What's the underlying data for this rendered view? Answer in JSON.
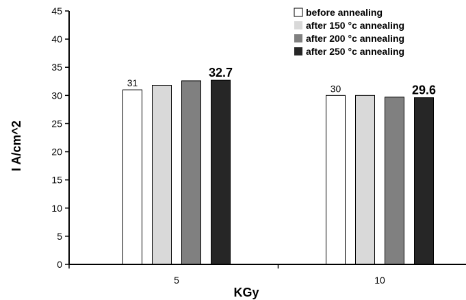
{
  "chart_data": {
    "type": "bar",
    "categories": [
      "5",
      "10"
    ],
    "series": [
      {
        "name": "before annealing",
        "values": [
          31,
          30
        ],
        "color": "#ffffff"
      },
      {
        "name": "after 150 °c annealing",
        "values": [
          31.8,
          30
        ],
        "color": "#d9d9d9"
      },
      {
        "name": "after 200 °c annealing",
        "values": [
          32.6,
          29.7
        ],
        "color": "#808080"
      },
      {
        "name": "after 250 °c annealing",
        "values": [
          32.7,
          29.6
        ],
        "color": "#262626"
      }
    ],
    "data_labels": [
      {
        "category": 0,
        "series": 0,
        "text": "31",
        "bold": false
      },
      {
        "category": 0,
        "series": 3,
        "text": "32.7",
        "bold": true
      },
      {
        "category": 1,
        "series": 0,
        "text": "30",
        "bold": false
      },
      {
        "category": 1,
        "series": 3,
        "text": "29.6",
        "bold": true
      }
    ],
    "title": "",
    "xlabel": "KGy",
    "ylabel": "I  A/cm^2",
    "ylim": [
      0,
      45
    ],
    "yticks": [
      0,
      5,
      10,
      15,
      20,
      25,
      30,
      35,
      40,
      45
    ],
    "grid": false,
    "legend_position": "top-right"
  }
}
